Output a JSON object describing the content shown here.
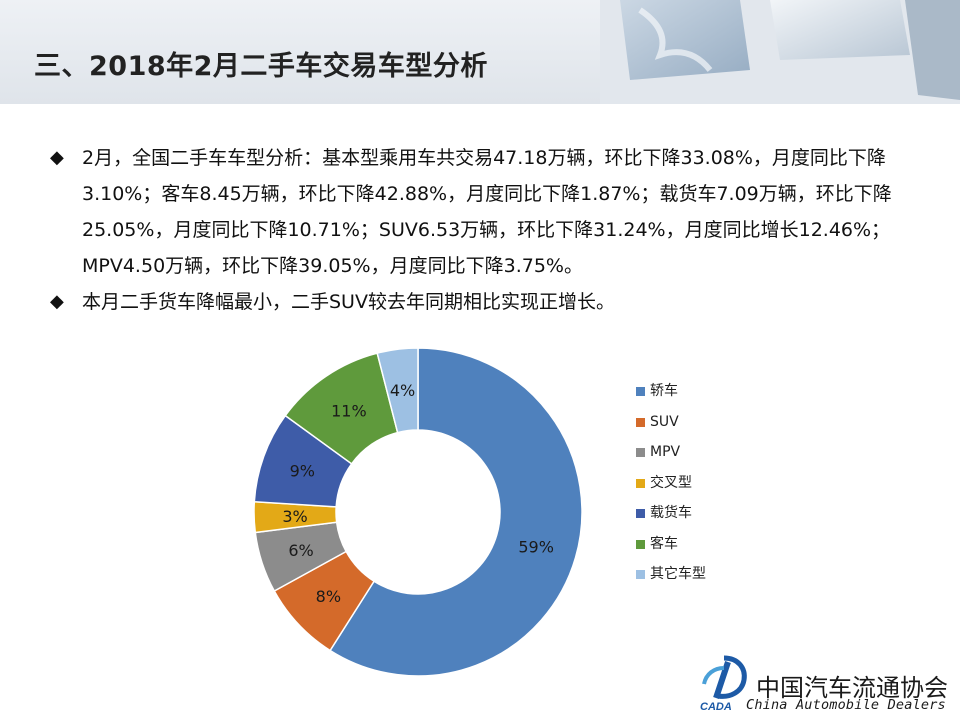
{
  "title": "三、2018年2月二手车交易车型分析",
  "bullets": [
    {
      "marker": "◆",
      "text": "2月，全国二手车车型分析：基本型乘用车共交易47.18万辆，环比下降33.08%，月度同比下降3.10%；客车8.45万辆，环比下降42.88%，月度同比下降1.87%；载货车7.09万辆，环比下降25.05%，月度同比下降10.71%；SUV6.53万辆，环比下降31.24%，月度同比增长12.46%；MPV4.50万辆，环比下降39.05%，月度同比下降3.75%。"
    },
    {
      "marker": "◆",
      "text": " 本月二手货车降幅最小，二手SUV较去年同期相比实现正增长。"
    }
  ],
  "chart_data": {
    "type": "pie",
    "donut": true,
    "title": "",
    "legend_position": "right",
    "categories": [
      "轿车",
      "SUV",
      "MPV",
      "交叉型",
      "载货车",
      "客车",
      "其它车型"
    ],
    "values": [
      59,
      8,
      6,
      3,
      9,
      11,
      4
    ],
    "data_labels": [
      "59%",
      "8%",
      "6%",
      "3%",
      "9%",
      "11%",
      "4%"
    ],
    "colors": [
      "#4f81bd",
      "#d46a2a",
      "#8c8c8c",
      "#e3a917",
      "#3e5ca8",
      "#5f9a3c",
      "#9dc0e3"
    ]
  },
  "footer": {
    "org_cn": "中国汽车流通协会",
    "org_en": "China Automobile Dealers",
    "logo_text": "CADA"
  }
}
